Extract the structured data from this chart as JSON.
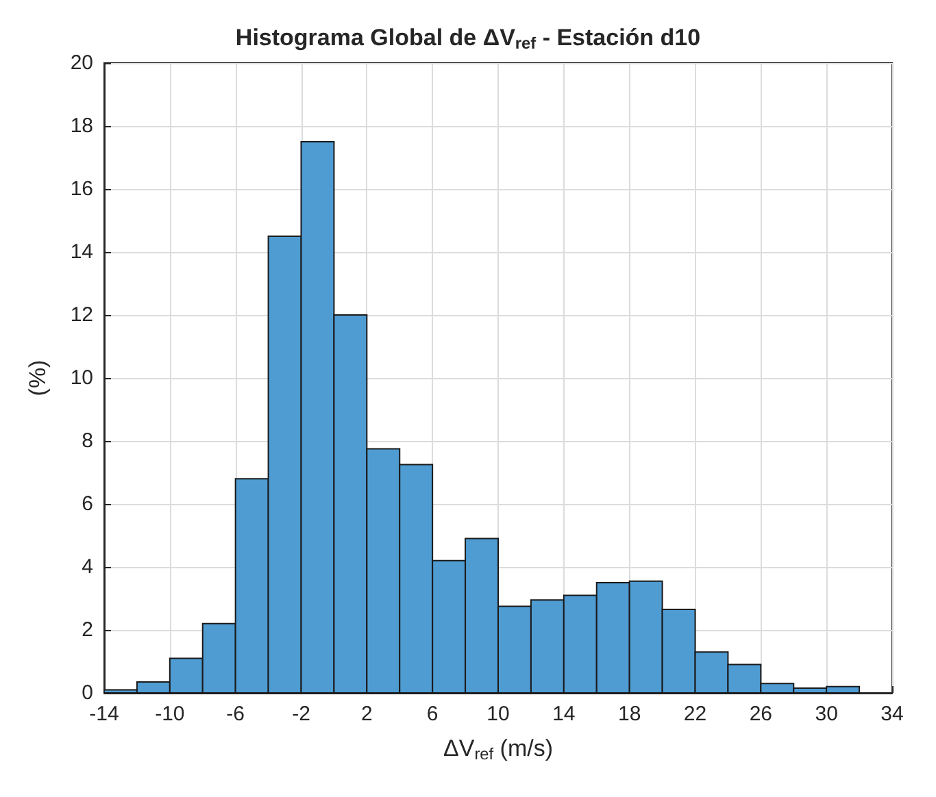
{
  "chart_data": {
    "type": "histogram",
    "title": "Histograma Global de ΔV$_{ref}$ - Estación d10",
    "xlabel": "ΔV$_{ref}$ (m/s)",
    "ylabel": "(%)",
    "bins": [
      -14,
      -12,
      -10,
      -8,
      -6,
      -4,
      -2,
      0,
      2,
      4,
      6,
      8,
      10,
      12,
      14,
      16,
      18,
      20,
      22,
      24,
      26,
      28,
      30,
      32
    ],
    "values": [
      0.1,
      0.35,
      1.1,
      2.2,
      6.8,
      14.5,
      17.5,
      12.0,
      7.75,
      7.25,
      4.2,
      4.9,
      2.75,
      2.95,
      3.1,
      3.5,
      3.55,
      2.65,
      1.3,
      0.9,
      0.3,
      0.15,
      0.2
    ],
    "color": "#4f9cd3",
    "xlim": [
      -14,
      34
    ],
    "xticks": [
      -14,
      -10,
      -6,
      -2,
      2,
      6,
      10,
      14,
      18,
      22,
      26,
      30,
      34
    ],
    "ylim": [
      0,
      20
    ],
    "yticks": [
      0,
      2,
      4,
      6,
      8,
      10,
      12,
      14,
      16,
      18,
      20
    ],
    "grid": true
  }
}
